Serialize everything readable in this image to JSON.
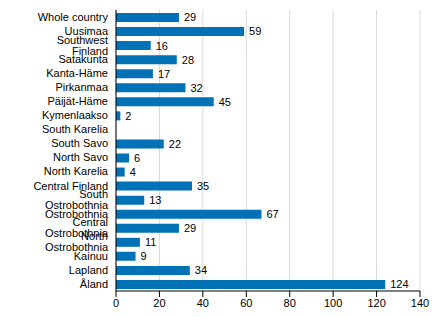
{
  "chart_data": {
    "type": "bar",
    "orientation": "horizontal",
    "categories": [
      "Whole country",
      "Uusimaa",
      "Southwest Finland",
      "Satakunta",
      "Kanta-Häme",
      "Pirkanmaa",
      "Päijät-Häme",
      "Kymenlaakso",
      "South Karelia",
      "South Savo",
      "North Savo",
      "North Karelia",
      "Central Finland",
      "South Ostrobothnia",
      "Ostrobothnia",
      "Central Ostrobothnia",
      "North Ostrobothnia",
      "Kainuu",
      "Lapland",
      "Åland"
    ],
    "values": [
      29,
      59,
      16,
      28,
      17,
      32,
      45,
      2,
      0,
      22,
      6,
      4,
      35,
      13,
      67,
      29,
      11,
      9,
      34,
      124
    ],
    "color": "#0072b5",
    "xlim": [
      0,
      140
    ],
    "xticks": [
      0,
      20,
      40,
      60,
      80,
      100,
      120,
      140
    ],
    "grid": true,
    "data_labels": true
  }
}
